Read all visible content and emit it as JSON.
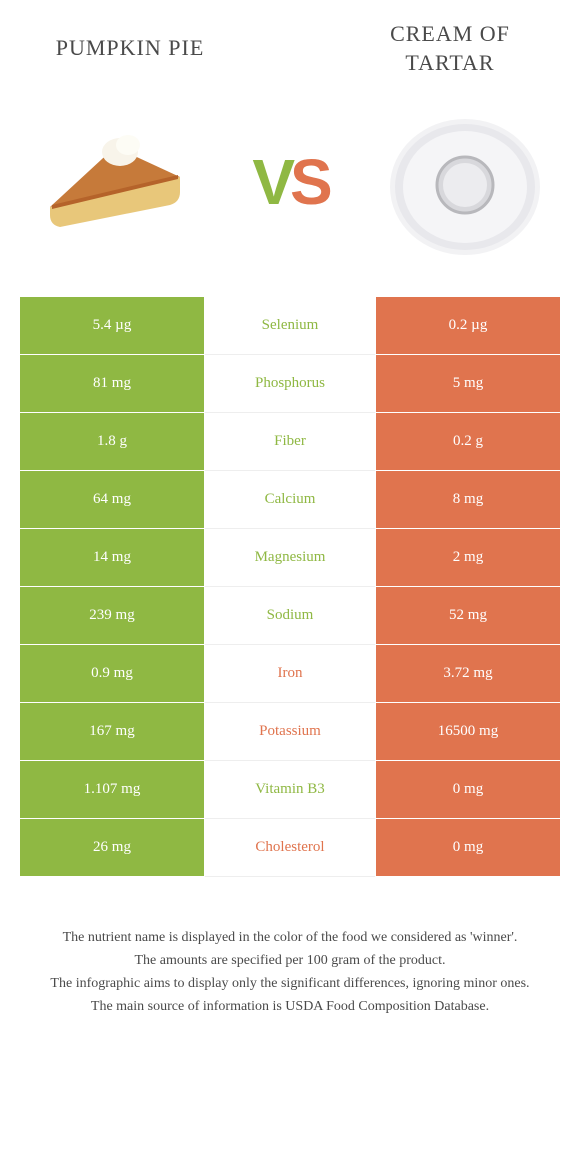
{
  "header": {
    "left_title": "Pumpkin Pie",
    "right_title": "Cream of Tartar"
  },
  "vs": {
    "v": "V",
    "s": "S"
  },
  "colors": {
    "green": "#8fb843",
    "orange": "#e0744e",
    "white": "#ffffff",
    "text": "#4a4a4a"
  },
  "rows": [
    {
      "left": "5.4 µg",
      "label": "Selenium",
      "right": "0.2 µg",
      "winner": "green"
    },
    {
      "left": "81 mg",
      "label": "Phosphorus",
      "right": "5 mg",
      "winner": "green"
    },
    {
      "left": "1.8 g",
      "label": "Fiber",
      "right": "0.2 g",
      "winner": "green"
    },
    {
      "left": "64 mg",
      "label": "Calcium",
      "right": "8 mg",
      "winner": "green"
    },
    {
      "left": "14 mg",
      "label": "Magnesium",
      "right": "2 mg",
      "winner": "green"
    },
    {
      "left": "239 mg",
      "label": "Sodium",
      "right": "52 mg",
      "winner": "green"
    },
    {
      "left": "0.9 mg",
      "label": "Iron",
      "right": "3.72 mg",
      "winner": "orange"
    },
    {
      "left": "167 mg",
      "label": "Potassium",
      "right": "16500 mg",
      "winner": "orange"
    },
    {
      "left": "1.107 mg",
      "label": "Vitamin B3",
      "right": "0 mg",
      "winner": "green"
    },
    {
      "left": "26 mg",
      "label": "Cholesterol",
      "right": "0 mg",
      "winner": "orange"
    }
  ],
  "footer": {
    "line1": "The nutrient name is displayed in the color of the food we considered as 'winner'.",
    "line2": "The amounts are specified per 100 gram of the product.",
    "line3": "The infographic aims to display only the significant differences, ignoring minor ones.",
    "line4": "The main source of information is USDA Food Composition Database."
  }
}
